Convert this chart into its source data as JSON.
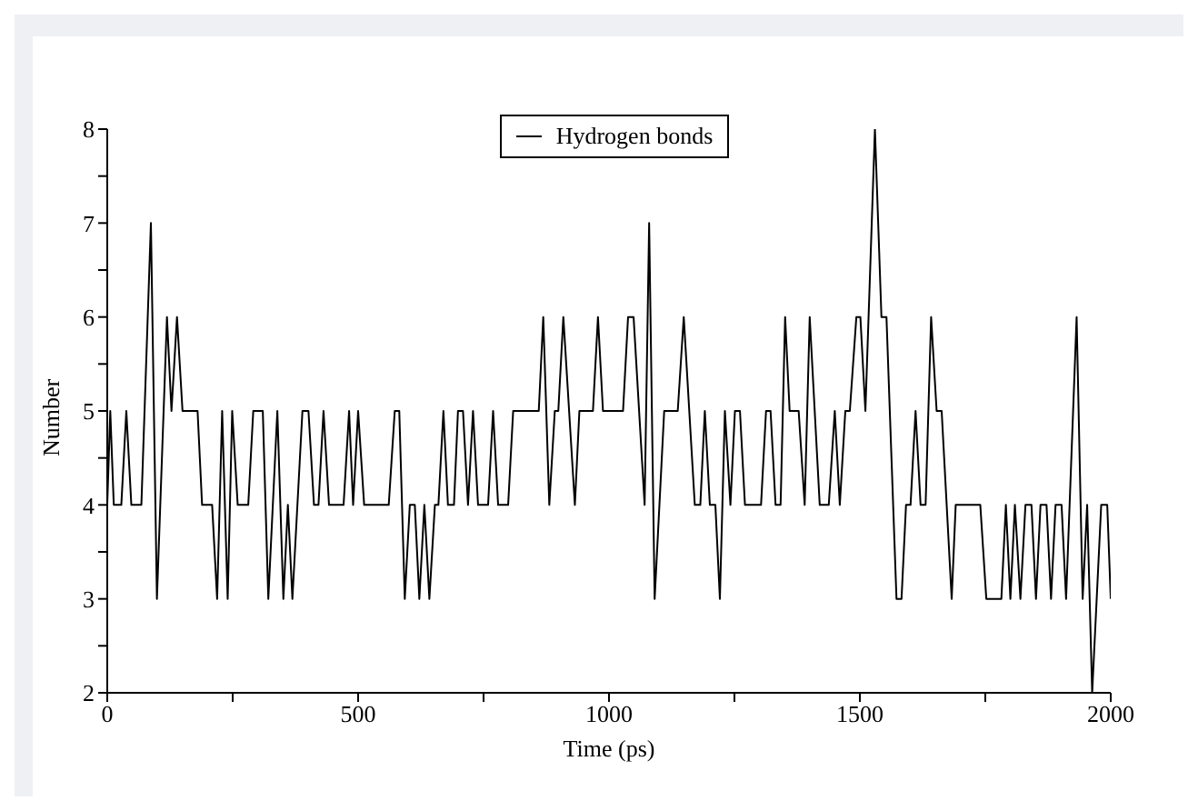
{
  "chart_data": {
    "type": "line",
    "xlabel": "Time (ps)",
    "ylabel": "Number",
    "x": [
      0,
      6,
      13,
      28,
      38,
      48,
      68,
      87,
      99,
      119,
      128,
      139,
      150,
      180,
      189,
      209,
      219,
      229,
      240,
      249,
      260,
      281,
      291,
      310,
      321,
      339,
      351,
      360,
      369,
      389,
      401,
      412,
      421,
      431,
      442,
      471,
      482,
      490,
      500,
      512,
      561,
      573,
      582,
      593,
      603,
      613,
      622,
      632,
      642,
      653,
      660,
      670,
      679,
      691,
      699,
      709,
      719,
      729,
      739,
      759,
      769,
      779,
      799,
      809,
      860,
      869,
      881,
      892,
      899,
      909,
      932,
      941,
      968,
      978,
      988,
      1028,
      1038,
      1049,
      1071,
      1080,
      1091,
      1110,
      1137,
      1149,
      1171,
      1182,
      1191,
      1201,
      1212,
      1221,
      1231,
      1242,
      1251,
      1261,
      1271,
      1303,
      1313,
      1322,
      1332,
      1342,
      1351,
      1360,
      1378,
      1390,
      1400,
      1420,
      1438,
      1450,
      1460,
      1471,
      1480,
      1493,
      1501,
      1511,
      1530,
      1543,
      1553,
      1573,
      1583,
      1592,
      1601,
      1611,
      1621,
      1631,
      1642,
      1653,
      1663,
      1683,
      1691,
      1740,
      1752,
      1782,
      1791,
      1800,
      1809,
      1820,
      1830,
      1842,
      1851,
      1860,
      1872,
      1881,
      1890,
      1902,
      1911,
      1932,
      1944,
      1953,
      1963,
      1981,
      1993,
      2000
    ],
    "series": [
      {
        "name": "Hydrogen bonds",
        "color": "#000000",
        "values": [
          4,
          5,
          4,
          4,
          5,
          4,
          4,
          7,
          3,
          6,
          5,
          6,
          5,
          5,
          4,
          4,
          3,
          5,
          3,
          5,
          4,
          4,
          5,
          5,
          3,
          5,
          3,
          4,
          3,
          5,
          5,
          4,
          4,
          5,
          4,
          4,
          5,
          4,
          5,
          4,
          4,
          5,
          5,
          3,
          4,
          4,
          3,
          4,
          3,
          4,
          4,
          5,
          4,
          4,
          5,
          5,
          4,
          5,
          4,
          4,
          5,
          4,
          4,
          5,
          5,
          6,
          4,
          5,
          5,
          6,
          4,
          5,
          5,
          6,
          5,
          5,
          6,
          6,
          4,
          7,
          3,
          5,
          5,
          6,
          4,
          4,
          5,
          4,
          4,
          3,
          5,
          4,
          5,
          5,
          4,
          4,
          5,
          5,
          4,
          4,
          6,
          5,
          5,
          4,
          6,
          4,
          4,
          5,
          4,
          5,
          5,
          6,
          6,
          5,
          8,
          6,
          6,
          3,
          3,
          4,
          4,
          5,
          4,
          4,
          6,
          5,
          5,
          3,
          4,
          4,
          3,
          3,
          4,
          3,
          4,
          3,
          4,
          4,
          3,
          4,
          4,
          3,
          4,
          4,
          3,
          6,
          3,
          4,
          2,
          4,
          4,
          3
        ]
      }
    ],
    "xlim": [
      0,
      2000
    ],
    "xticks": [
      0,
      {
        "value": 250,
        "label": null
      },
      500,
      {
        "value": 750,
        "label": null
      },
      1000,
      {
        "value": 1250,
        "label": null
      },
      1500,
      {
        "value": 1750,
        "label": null
      },
      2000
    ],
    "ylim": [
      2,
      8
    ],
    "yticks": [
      2,
      {
        "value": 2.5,
        "label": null
      },
      3,
      {
        "value": 3.5,
        "label": null
      },
      4,
      {
        "value": 4.5,
        "label": null
      },
      5,
      {
        "value": 5.5,
        "label": null
      },
      6,
      {
        "value": 6.5,
        "label": null
      },
      7,
      {
        "value": 7.5,
        "label": null
      },
      8
    ],
    "grid": false,
    "legend": "top",
    "marker": "none",
    "line_style": "solid"
  }
}
